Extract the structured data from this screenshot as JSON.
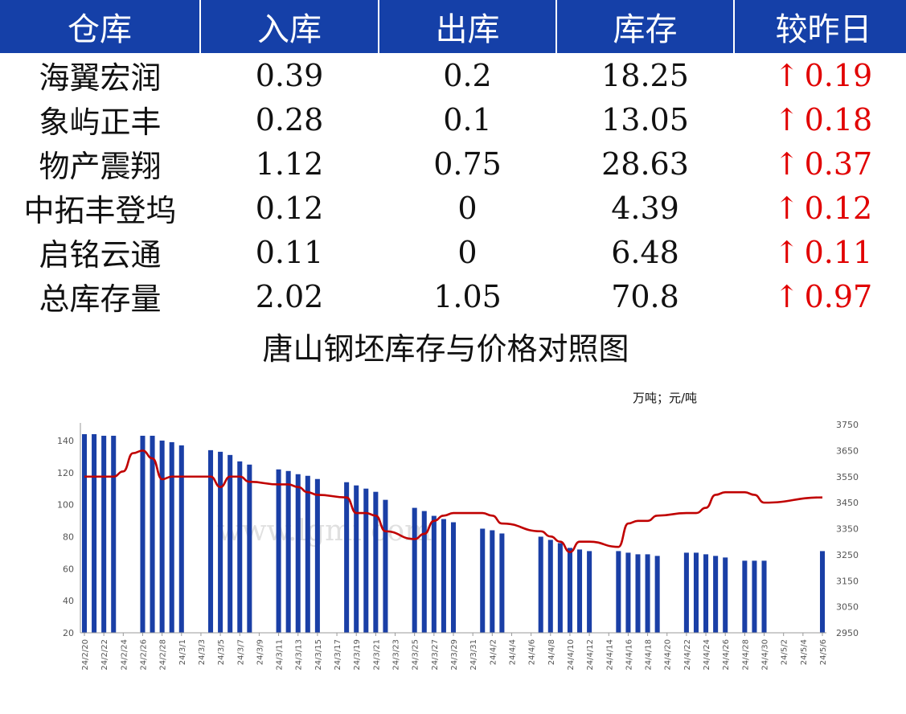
{
  "table": {
    "headers": [
      "仓库",
      "入库",
      "出库",
      "库存",
      "较昨日"
    ],
    "rows": [
      {
        "warehouse": "海翼宏润",
        "in": "0.39",
        "out": "0.2",
        "stock": "18.25",
        "change": "0.19"
      },
      {
        "warehouse": "象屿正丰",
        "in": "0.28",
        "out": "0.1",
        "stock": "13.05",
        "change": "0.18"
      },
      {
        "warehouse": "物产震翔",
        "in": "1.12",
        "out": "0.75",
        "stock": "28.63",
        "change": "0.37"
      },
      {
        "warehouse": "中拓丰登坞",
        "in": "0.12",
        "out": "0",
        "stock": "4.39",
        "change": "0.12"
      },
      {
        "warehouse": "启铭云通",
        "in": "0.11",
        "out": "0",
        "stock": "6.48",
        "change": "0.11"
      },
      {
        "warehouse": "总库存量",
        "in": "2.02",
        "out": "1.05",
        "stock": "70.8",
        "change": "0.97"
      }
    ],
    "up_arrow": "↑",
    "colors": {
      "header_bg": "#1540a8",
      "up": "#e10000"
    }
  },
  "chart_data": {
    "type": "bar+line",
    "title": "唐山钢坯库存与价格对照图",
    "unit_label": "万吨；元/吨",
    "watermark": "www.lgmi.com",
    "y_left": {
      "min": 20,
      "max": 150,
      "ticks": [
        20,
        40,
        60,
        80,
        100,
        120,
        140
      ]
    },
    "y_right": {
      "min": 2950,
      "max": 3750,
      "ticks": [
        2950,
        3050,
        3150,
        3250,
        3350,
        3450,
        3550,
        3650,
        3750
      ]
    },
    "x_start": "2024-02-20",
    "x_end": "2024-05-06",
    "x_tick_labels": [
      "24/2/20",
      "24/2/22",
      "24/2/24",
      "24/2/26",
      "24/2/28",
      "24/3/1",
      "24/3/3",
      "24/3/5",
      "24/3/7",
      "24/3/9",
      "24/3/11",
      "24/3/13",
      "24/3/15",
      "24/3/17",
      "24/3/19",
      "24/3/21",
      "24/3/23",
      "24/3/25",
      "24/3/27",
      "24/3/29",
      "24/3/31",
      "24/4/2",
      "24/4/4",
      "24/4/6",
      "24/4/8",
      "24/4/10",
      "24/4/12",
      "24/4/14",
      "24/4/16",
      "24/4/18",
      "24/4/20",
      "24/4/22",
      "24/4/24",
      "24/4/26",
      "24/4/28",
      "24/4/30",
      "24/5/2",
      "24/5/4",
      "24/5/6"
    ],
    "series": [
      {
        "name": "库存",
        "axis": "left",
        "color": "#1a3fa6",
        "points": [
          [
            "2024-02-20",
            144
          ],
          [
            "2024-02-21",
            144
          ],
          [
            "2024-02-22",
            143
          ],
          [
            "2024-02-23",
            143
          ],
          [
            "2024-02-26",
            143
          ],
          [
            "2024-02-27",
            143
          ],
          [
            "2024-02-28",
            140
          ],
          [
            "2024-02-29",
            139
          ],
          [
            "2024-03-01",
            137
          ],
          [
            "2024-03-04",
            134
          ],
          [
            "2024-03-05",
            133
          ],
          [
            "2024-03-06",
            131
          ],
          [
            "2024-03-07",
            127
          ],
          [
            "2024-03-08",
            125
          ],
          [
            "2024-03-11",
            122
          ],
          [
            "2024-03-12",
            121
          ],
          [
            "2024-03-13",
            119
          ],
          [
            "2024-03-14",
            118
          ],
          [
            "2024-03-15",
            116
          ],
          [
            "2024-03-18",
            114
          ],
          [
            "2024-03-19",
            112
          ],
          [
            "2024-03-20",
            110
          ],
          [
            "2024-03-21",
            108
          ],
          [
            "2024-03-22",
            103
          ],
          [
            "2024-03-25",
            98
          ],
          [
            "2024-03-26",
            96
          ],
          [
            "2024-03-27",
            93
          ],
          [
            "2024-03-28",
            91
          ],
          [
            "2024-03-29",
            89
          ],
          [
            "2024-04-01",
            85
          ],
          [
            "2024-04-02",
            84
          ],
          [
            "2024-04-03",
            82
          ],
          [
            "2024-04-07",
            80
          ],
          [
            "2024-04-08",
            78
          ],
          [
            "2024-04-09",
            76
          ],
          [
            "2024-04-10",
            73
          ],
          [
            "2024-04-11",
            72
          ],
          [
            "2024-04-12",
            71
          ],
          [
            "2024-04-15",
            71
          ],
          [
            "2024-04-16",
            70
          ],
          [
            "2024-04-17",
            69
          ],
          [
            "2024-04-18",
            69
          ],
          [
            "2024-04-19",
            68
          ],
          [
            "2024-04-22",
            70
          ],
          [
            "2024-04-23",
            70
          ],
          [
            "2024-04-24",
            69
          ],
          [
            "2024-04-25",
            68
          ],
          [
            "2024-04-26",
            67
          ],
          [
            "2024-04-28",
            65
          ],
          [
            "2024-04-29",
            65
          ],
          [
            "2024-04-30",
            65
          ],
          [
            "2024-05-06",
            71
          ]
        ]
      },
      {
        "name": "价格",
        "axis": "right",
        "color": "#c00000",
        "points": [
          [
            "2024-02-20",
            3550
          ],
          [
            "2024-02-23",
            3550
          ],
          [
            "2024-02-24",
            3570
          ],
          [
            "2024-02-25",
            3640
          ],
          [
            "2024-02-26",
            3650
          ],
          [
            "2024-02-27",
            3620
          ],
          [
            "2024-02-28",
            3540
          ],
          [
            "2024-02-29",
            3550
          ],
          [
            "2024-03-01",
            3550
          ],
          [
            "2024-03-04",
            3550
          ],
          [
            "2024-03-05",
            3510
          ],
          [
            "2024-03-06",
            3550
          ],
          [
            "2024-03-07",
            3550
          ],
          [
            "2024-03-08",
            3530
          ],
          [
            "2024-03-11",
            3520
          ],
          [
            "2024-03-12",
            3520
          ],
          [
            "2024-03-13",
            3510
          ],
          [
            "2024-03-14",
            3490
          ],
          [
            "2024-03-15",
            3480
          ],
          [
            "2024-03-18",
            3470
          ],
          [
            "2024-03-19",
            3410
          ],
          [
            "2024-03-20",
            3410
          ],
          [
            "2024-03-21",
            3400
          ],
          [
            "2024-03-22",
            3340
          ],
          [
            "2024-03-25",
            3310
          ],
          [
            "2024-03-26",
            3330
          ],
          [
            "2024-03-27",
            3380
          ],
          [
            "2024-03-28",
            3400
          ],
          [
            "2024-03-29",
            3410
          ],
          [
            "2024-04-01",
            3410
          ],
          [
            "2024-04-02",
            3400
          ],
          [
            "2024-04-03",
            3370
          ],
          [
            "2024-04-07",
            3340
          ],
          [
            "2024-04-08",
            3320
          ],
          [
            "2024-04-09",
            3300
          ],
          [
            "2024-04-10",
            3260
          ],
          [
            "2024-04-11",
            3300
          ],
          [
            "2024-04-12",
            3300
          ],
          [
            "2024-04-15",
            3280
          ],
          [
            "2024-04-16",
            3370
          ],
          [
            "2024-04-17",
            3380
          ],
          [
            "2024-04-18",
            3380
          ],
          [
            "2024-04-19",
            3400
          ],
          [
            "2024-04-22",
            3410
          ],
          [
            "2024-04-23",
            3410
          ],
          [
            "2024-04-24",
            3430
          ],
          [
            "2024-04-25",
            3480
          ],
          [
            "2024-04-26",
            3490
          ],
          [
            "2024-04-28",
            3490
          ],
          [
            "2024-04-29",
            3480
          ],
          [
            "2024-04-30",
            3450
          ],
          [
            "2024-05-06",
            3470
          ]
        ]
      }
    ],
    "grid": false,
    "legend": "none"
  }
}
